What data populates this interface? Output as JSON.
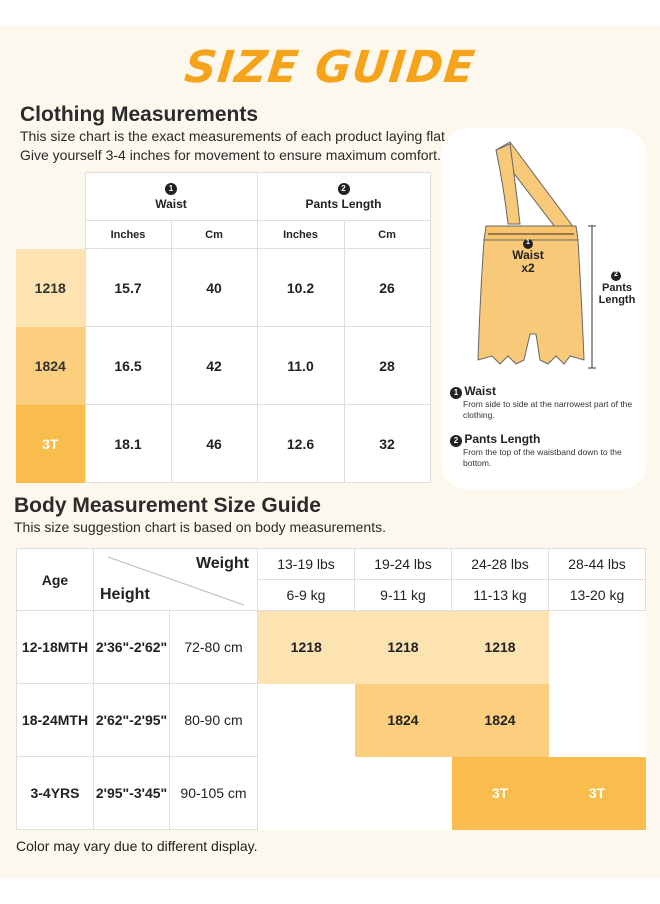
{
  "title": "SIZE GUIDE",
  "colors": {
    "accent": "#f6a31c",
    "size_1218": "#fde3b1",
    "size_1824": "#fbcf7e",
    "size_3t": "#f8bd4c"
  },
  "clothing": {
    "heading": "Clothing Measurements",
    "sub_line1": "This size chart is the exact measurements of each product laying flat.",
    "sub_line2": "Give yourself 3-4 inches for movement to ensure maximum comfort.",
    "groups": [
      {
        "num": "1",
        "label": "Waist"
      },
      {
        "num": "2",
        "label": "Pants Length"
      }
    ],
    "units": [
      "Inches",
      "Cm",
      "Inches",
      "Cm"
    ],
    "rows": [
      {
        "size": "1218",
        "values": [
          "15.7",
          "40",
          "10.2",
          "26"
        ]
      },
      {
        "size": "1824",
        "values": [
          "16.5",
          "42",
          "11.0",
          "28"
        ]
      },
      {
        "size": "3T",
        "values": [
          "18.1",
          "46",
          "12.6",
          "32"
        ]
      }
    ]
  },
  "diagram": {
    "waist_num": "1",
    "waist_label": "Waist",
    "waist_mult": "x2",
    "length_num": "2",
    "length_label_1": "Pants",
    "length_label_2": "Length",
    "legend": [
      {
        "num": "1",
        "title": "Waist",
        "desc": "From side to side at the narrowest part of the clothing."
      },
      {
        "num": "2",
        "title": "Pants Length",
        "desc": "From the top of the waistband down to the bottom."
      }
    ]
  },
  "body": {
    "heading": "Body Measurement Size Guide",
    "sub": "This size suggestion chart is based on body measurements.",
    "age_header": "Age",
    "weight_header": "Weight",
    "height_header": "Height",
    "weights_lbs": [
      "13-19 lbs",
      "19-24 lbs",
      "24-28 lbs",
      "28-44 lbs"
    ],
    "weights_kg": [
      "6-9 kg",
      "9-11 kg",
      "11-13 kg",
      "13-20 kg"
    ],
    "rows": [
      {
        "age": "12-18MTH",
        "height_in": "2'36\"-2'62\"",
        "height_cm": "72-80 cm"
      },
      {
        "age": "18-24MTH",
        "height_in": "2'62\"-2'95\"",
        "height_cm": "80-90 cm"
      },
      {
        "age": "3-4YRS",
        "height_in": "2'95\"-3'45\"",
        "height_cm": "90-105 cm"
      }
    ],
    "cells": {
      "r1": [
        "1218",
        "1218",
        "1218"
      ],
      "r2": [
        "1824",
        "1824"
      ],
      "r3": [
        "3T",
        "3T"
      ]
    }
  },
  "note": "Color may vary due to different display."
}
